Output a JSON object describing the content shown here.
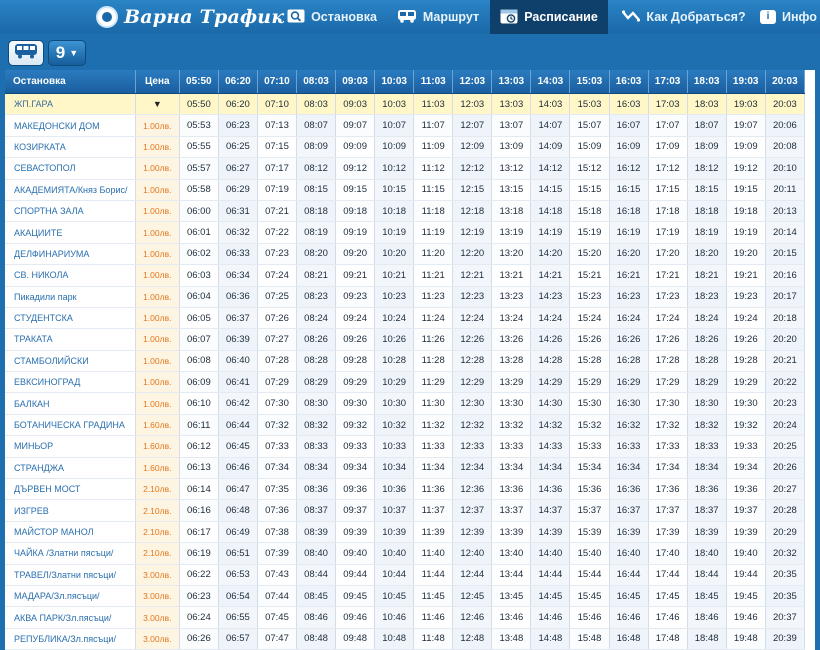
{
  "brand": {
    "name": "Варна Трафик"
  },
  "nav": [
    {
      "label": "Остановка",
      "icon": "stop-search-icon"
    },
    {
      "label": "Маршрут",
      "icon": "bus-icon"
    },
    {
      "label": "Расписание",
      "icon": "schedule-icon",
      "active": true
    },
    {
      "label": "Как Добраться?",
      "icon": "directions-icon"
    },
    {
      "label": "Инфо",
      "icon": "info-icon"
    }
  ],
  "toolbar": {
    "vehicle_icon": "bus-icon",
    "line_number": "9"
  },
  "table": {
    "header_stop": "Остановка",
    "header_price": "Цена",
    "times": [
      "05:50",
      "06:20",
      "07:10",
      "08:03",
      "09:03",
      "10:03",
      "11:03",
      "12:03",
      "13:03",
      "14:03",
      "15:03",
      "16:03",
      "17:03",
      "18:03",
      "19:03",
      "20:03"
    ],
    "rows": [
      {
        "stop": "ЖП.ГАРА",
        "price": "",
        "times": [
          "05:50",
          "06:20",
          "07:10",
          "08:03",
          "09:03",
          "10:03",
          "11:03",
          "12:03",
          "13:03",
          "14:03",
          "15:03",
          "16:03",
          "17:03",
          "18:03",
          "19:03",
          "20:03"
        ]
      },
      {
        "stop": "МАКЕДОНСКИ ДОМ",
        "price": "1.00лв.",
        "times": [
          "05:53",
          "06:23",
          "07:13",
          "08:07",
          "09:07",
          "10:07",
          "11:07",
          "12:07",
          "13:07",
          "14:07",
          "15:07",
          "16:07",
          "17:07",
          "18:07",
          "19:07",
          "20:06"
        ]
      },
      {
        "stop": "КОЗИРКАТА",
        "price": "1.00лв.",
        "times": [
          "05:55",
          "06:25",
          "07:15",
          "08:09",
          "09:09",
          "10:09",
          "11:09",
          "12:09",
          "13:09",
          "14:09",
          "15:09",
          "16:09",
          "17:09",
          "18:09",
          "19:09",
          "20:08"
        ]
      },
      {
        "stop": "СЕВАСТОПОЛ",
        "price": "1.00лв.",
        "times": [
          "05:57",
          "06:27",
          "07:17",
          "08:12",
          "09:12",
          "10:12",
          "11:12",
          "12:12",
          "13:12",
          "14:12",
          "15:12",
          "16:12",
          "17:12",
          "18:12",
          "19:12",
          "20:10"
        ]
      },
      {
        "stop": "АКАДЕМИЯТА/Княз Борис/",
        "price": "1.00лв.",
        "times": [
          "05:58",
          "06:29",
          "07:19",
          "08:15",
          "09:15",
          "10:15",
          "11:15",
          "12:15",
          "13:15",
          "14:15",
          "15:15",
          "16:15",
          "17:15",
          "18:15",
          "19:15",
          "20:11"
        ]
      },
      {
        "stop": "СПОРТНА ЗАЛА",
        "price": "1.00лв.",
        "times": [
          "06:00",
          "06:31",
          "07:21",
          "08:18",
          "09:18",
          "10:18",
          "11:18",
          "12:18",
          "13:18",
          "14:18",
          "15:18",
          "16:18",
          "17:18",
          "18:18",
          "19:18",
          "20:13"
        ]
      },
      {
        "stop": "АКАЦИИТЕ",
        "price": "1.00лв.",
        "times": [
          "06:01",
          "06:32",
          "07:22",
          "08:19",
          "09:19",
          "10:19",
          "11:19",
          "12:19",
          "13:19",
          "14:19",
          "15:19",
          "16:19",
          "17:19",
          "18:19",
          "19:19",
          "20:14"
        ]
      },
      {
        "stop": "ДЕЛФИНАРИУМА",
        "price": "1.00лв.",
        "times": [
          "06:02",
          "06:33",
          "07:23",
          "08:20",
          "09:20",
          "10:20",
          "11:20",
          "12:20",
          "13:20",
          "14:20",
          "15:20",
          "16:20",
          "17:20",
          "18:20",
          "19:20",
          "20:15"
        ]
      },
      {
        "stop": "СВ. НИКОЛА",
        "price": "1.00лв.",
        "times": [
          "06:03",
          "06:34",
          "07:24",
          "08:21",
          "09:21",
          "10:21",
          "11:21",
          "12:21",
          "13:21",
          "14:21",
          "15:21",
          "16:21",
          "17:21",
          "18:21",
          "19:21",
          "20:16"
        ]
      },
      {
        "stop": "Пикадили парк",
        "price": "1.00лв.",
        "times": [
          "06:04",
          "06:36",
          "07:25",
          "08:23",
          "09:23",
          "10:23",
          "11:23",
          "12:23",
          "13:23",
          "14:23",
          "15:23",
          "16:23",
          "17:23",
          "18:23",
          "19:23",
          "20:17"
        ]
      },
      {
        "stop": "СТУДЕНТСКА",
        "price": "1.00лв.",
        "times": [
          "06:05",
          "06:37",
          "07:26",
          "08:24",
          "09:24",
          "10:24",
          "11:24",
          "12:24",
          "13:24",
          "14:24",
          "15:24",
          "16:24",
          "17:24",
          "18:24",
          "19:24",
          "20:18"
        ]
      },
      {
        "stop": "ТРАКАТА",
        "price": "1.00лв.",
        "times": [
          "06:07",
          "06:39",
          "07:27",
          "08:26",
          "09:26",
          "10:26",
          "11:26",
          "12:26",
          "13:26",
          "14:26",
          "15:26",
          "16:26",
          "17:26",
          "18:26",
          "19:26",
          "20:20"
        ]
      },
      {
        "stop": "СТАМБОЛИЙСКИ",
        "price": "1.00лв.",
        "times": [
          "06:08",
          "06:40",
          "07:28",
          "08:28",
          "09:28",
          "10:28",
          "11:28",
          "12:28",
          "13:28",
          "14:28",
          "15:28",
          "16:28",
          "17:28",
          "18:28",
          "19:28",
          "20:21"
        ]
      },
      {
        "stop": "ЕВКСИНОГРАД",
        "price": "1.00лв.",
        "times": [
          "06:09",
          "06:41",
          "07:29",
          "08:29",
          "09:29",
          "10:29",
          "11:29",
          "12:29",
          "13:29",
          "14:29",
          "15:29",
          "16:29",
          "17:29",
          "18:29",
          "19:29",
          "20:22"
        ]
      },
      {
        "stop": "БАЛКАН",
        "price": "1.00лв.",
        "times": [
          "06:10",
          "06:42",
          "07:30",
          "08:30",
          "09:30",
          "10:30",
          "11:30",
          "12:30",
          "13:30",
          "14:30",
          "15:30",
          "16:30",
          "17:30",
          "18:30",
          "19:30",
          "20:23"
        ]
      },
      {
        "stop": "БОТАНИЧЕСКА ГРАДИНА",
        "price": "1.60лв.",
        "times": [
          "06:11",
          "06:44",
          "07:32",
          "08:32",
          "09:32",
          "10:32",
          "11:32",
          "12:32",
          "13:32",
          "14:32",
          "15:32",
          "16:32",
          "17:32",
          "18:32",
          "19:32",
          "20:24"
        ]
      },
      {
        "stop": "МИНЬОР",
        "price": "1.60лв.",
        "times": [
          "06:12",
          "06:45",
          "07:33",
          "08:33",
          "09:33",
          "10:33",
          "11:33",
          "12:33",
          "13:33",
          "14:33",
          "15:33",
          "16:33",
          "17:33",
          "18:33",
          "19:33",
          "20:25"
        ]
      },
      {
        "stop": "СТРАНДЖА",
        "price": "1.60лв.",
        "times": [
          "06:13",
          "06:46",
          "07:34",
          "08:34",
          "09:34",
          "10:34",
          "11:34",
          "12:34",
          "13:34",
          "14:34",
          "15:34",
          "16:34",
          "17:34",
          "18:34",
          "19:34",
          "20:26"
        ]
      },
      {
        "stop": "ДЪРВЕН МОСТ",
        "price": "2.10лв.",
        "times": [
          "06:14",
          "06:47",
          "07:35",
          "08:36",
          "09:36",
          "10:36",
          "11:36",
          "12:36",
          "13:36",
          "14:36",
          "15:36",
          "16:36",
          "17:36",
          "18:36",
          "19:36",
          "20:27"
        ]
      },
      {
        "stop": "ИЗГРЕВ",
        "price": "2.10лв.",
        "times": [
          "06:16",
          "06:48",
          "07:36",
          "08:37",
          "09:37",
          "10:37",
          "11:37",
          "12:37",
          "13:37",
          "14:37",
          "15:37",
          "16:37",
          "17:37",
          "18:37",
          "19:37",
          "20:28"
        ]
      },
      {
        "stop": "МАЙСТОР МАНОЛ",
        "price": "2.10лв.",
        "times": [
          "06:17",
          "06:49",
          "07:38",
          "08:39",
          "09:39",
          "10:39",
          "11:39",
          "12:39",
          "13:39",
          "14:39",
          "15:39",
          "16:39",
          "17:39",
          "18:39",
          "19:39",
          "20:29"
        ]
      },
      {
        "stop": "ЧАЙКА /Златни пясъци/",
        "price": "2.10лв.",
        "times": [
          "06:19",
          "06:51",
          "07:39",
          "08:40",
          "09:40",
          "10:40",
          "11:40",
          "12:40",
          "13:40",
          "14:40",
          "15:40",
          "16:40",
          "17:40",
          "18:40",
          "19:40",
          "20:32"
        ]
      },
      {
        "stop": "ТРАВЕЛ/Златни пясъци/",
        "price": "3.00лв.",
        "times": [
          "06:22",
          "06:53",
          "07:43",
          "08:44",
          "09:44",
          "10:44",
          "11:44",
          "12:44",
          "13:44",
          "14:44",
          "15:44",
          "16:44",
          "17:44",
          "18:44",
          "19:44",
          "20:35"
        ]
      },
      {
        "stop": "МАДАРА/Зл.пясъци/",
        "price": "3.00лв.",
        "times": [
          "06:23",
          "06:54",
          "07:44",
          "08:45",
          "09:45",
          "10:45",
          "11:45",
          "12:45",
          "13:45",
          "14:45",
          "15:45",
          "16:45",
          "17:45",
          "18:45",
          "19:45",
          "20:35"
        ]
      },
      {
        "stop": "АКВА ПАРК/Зл.пясъци/",
        "price": "3.00лв.",
        "times": [
          "06:24",
          "06:55",
          "07:45",
          "08:46",
          "09:46",
          "10:46",
          "11:46",
          "12:46",
          "13:46",
          "14:46",
          "15:46",
          "16:46",
          "17:46",
          "18:46",
          "19:46",
          "20:37"
        ]
      },
      {
        "stop": "РЕПУБЛИКА/Зл.пясъци/",
        "price": "3.00лв.",
        "times": [
          "06:26",
          "06:57",
          "07:47",
          "08:48",
          "09:48",
          "10:48",
          "11:48",
          "12:48",
          "13:48",
          "14:48",
          "15:48",
          "16:48",
          "17:48",
          "18:48",
          "19:48",
          "20:39"
        ]
      }
    ]
  }
}
